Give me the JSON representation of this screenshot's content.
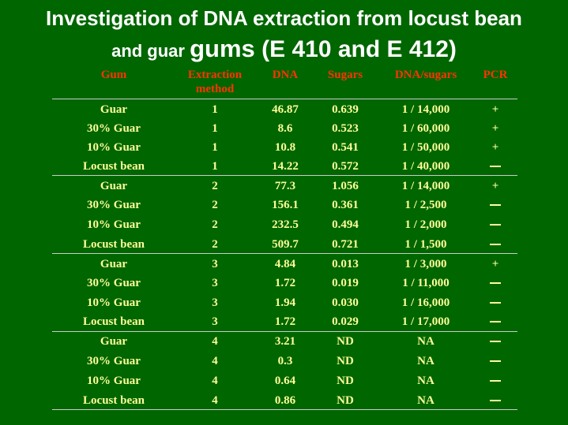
{
  "title": {
    "line1": "Investigation of DNA extraction from locust bean",
    "line2_a": "and guar ",
    "line2_b": "gums",
    "line2_c": " (E 410 and E 412)"
  },
  "colors": {
    "background": "#006600",
    "title": "#ffffff",
    "header": "#ff3300",
    "cells": "#ffff99",
    "rules": "#cccccc"
  },
  "table": {
    "headers": {
      "gum": "Gum",
      "extraction_line1": "Extraction",
      "extraction_line2": "method",
      "dna": "DNA",
      "sugars": "Sugars",
      "ratio": "DNA/sugars",
      "pcr": "PCR"
    },
    "rows": [
      {
        "gum": "Guar",
        "method": "1",
        "dna": "46.87",
        "sugars": "0.639",
        "ratio": "1 / 14,000",
        "pcr": "+"
      },
      {
        "gum": "30% Guar",
        "method": "1",
        "dna": "8.6",
        "sugars": "0.523",
        "ratio": "1 / 60,000",
        "pcr": "+"
      },
      {
        "gum": "10% Guar",
        "method": "1",
        "dna": "10.8",
        "sugars": "0.541",
        "ratio": "1 / 50,000",
        "pcr": "+"
      },
      {
        "gum": "Locust bean",
        "method": "1",
        "dna": "14.22",
        "sugars": "0.572",
        "ratio": "1 / 40,000",
        "pcr": "—"
      },
      {
        "gum": "Guar",
        "method": "2",
        "dna": "77.3",
        "sugars": "1.056",
        "ratio": "1 / 14,000",
        "pcr": "+"
      },
      {
        "gum": "30% Guar",
        "method": "2",
        "dna": "156.1",
        "sugars": "0.361",
        "ratio": "1 / 2,500",
        "pcr": "—"
      },
      {
        "gum": "10% Guar",
        "method": "2",
        "dna": "232.5",
        "sugars": "0.494",
        "ratio": "1 / 2,000",
        "pcr": "—"
      },
      {
        "gum": "Locust bean",
        "method": "2",
        "dna": "509.7",
        "sugars": "0.721",
        "ratio": "1 / 1,500",
        "pcr": "—"
      },
      {
        "gum": "Guar",
        "method": "3",
        "dna": "4.84",
        "sugars": "0.013",
        "ratio": "1 / 3,000",
        "pcr": "+"
      },
      {
        "gum": "30% Guar",
        "method": "3",
        "dna": "1.72",
        "sugars": "0.019",
        "ratio": "1 / 11,000",
        "pcr": "—"
      },
      {
        "gum": "10% Guar",
        "method": "3",
        "dna": "1.94",
        "sugars": "0.030",
        "ratio": "1 / 16,000",
        "pcr": "—"
      },
      {
        "gum": "Locust bean",
        "method": "3",
        "dna": "1.72",
        "sugars": "0.029",
        "ratio": "1 / 17,000",
        "pcr": "—"
      },
      {
        "gum": "Guar",
        "method": "4",
        "dna": "3.21",
        "sugars": "ND",
        "ratio": "NA",
        "pcr": "—"
      },
      {
        "gum": "30% Guar",
        "method": "4",
        "dna": "0.3",
        "sugars": "ND",
        "ratio": "NA",
        "pcr": "—"
      },
      {
        "gum": "10% Guar",
        "method": "4",
        "dna": "0.64",
        "sugars": "ND",
        "ratio": "NA",
        "pcr": "—"
      },
      {
        "gum": "Locust bean",
        "method": "4",
        "dna": "0.86",
        "sugars": "ND",
        "ratio": "NA",
        "pcr": "—"
      }
    ]
  }
}
